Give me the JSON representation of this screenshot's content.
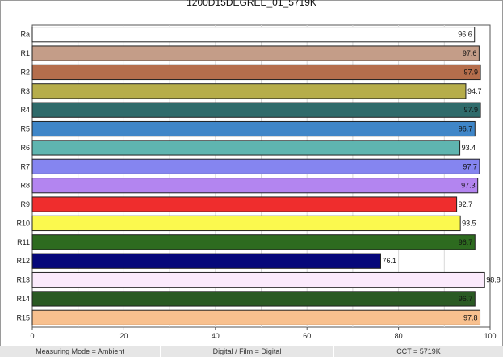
{
  "chart_data": {
    "type": "bar",
    "orientation": "horizontal",
    "title": "1200D15DEGREE_01_5719K",
    "categories": [
      "Ra",
      "R1",
      "R2",
      "R3",
      "R4",
      "R5",
      "R6",
      "R7",
      "R8",
      "R9",
      "R10",
      "R11",
      "R12",
      "R13",
      "R14",
      "R15"
    ],
    "values": [
      96.6,
      97.6,
      97.9,
      94.7,
      97.9,
      96.7,
      93.4,
      97.7,
      97.3,
      92.7,
      93.5,
      96.7,
      76.1,
      98.8,
      96.7,
      97.8
    ],
    "value_labels": [
      "96.6",
      "97.6",
      "97.9",
      "94.7",
      "97.9",
      "96.7",
      "93.4",
      "97.7",
      "97.3",
      "92.7",
      "93.5",
      "96.7",
      "76.1",
      "98.8",
      "96.7",
      "97.8"
    ],
    "colors": [
      "#ffffff",
      "#c49d88",
      "#b56e4c",
      "#b6ad4a",
      "#2f6b6b",
      "#3f86c8",
      "#5fb5b0",
      "#8585f0",
      "#b385f0",
      "#ef2d2d",
      "#fbf94e",
      "#2d6b1f",
      "#06087a",
      "#fbeafc",
      "#2a5a23",
      "#f8c08e"
    ],
    "x_ticks": [
      "0",
      "20",
      "40",
      "60",
      "80",
      "100"
    ],
    "xlim": [
      0,
      100
    ],
    "grid": "vertical"
  },
  "status_bar": {
    "measuring_mode": "Measuring Mode = Ambient",
    "digital_film": "Digital / Film = Digital",
    "cct": "CCT = 5719K"
  }
}
